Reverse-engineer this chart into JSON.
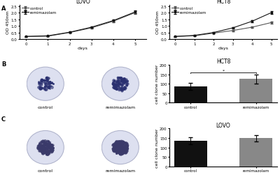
{
  "lovo_days": [
    0,
    1,
    2,
    3,
    4,
    5
  ],
  "lovo_control": [
    0.2,
    0.22,
    0.5,
    0.85,
    1.35,
    2.0
  ],
  "lovo_remi": [
    0.2,
    0.25,
    0.52,
    0.9,
    1.4,
    2.05
  ],
  "lovo_control_err": [
    0.02,
    0.02,
    0.04,
    0.06,
    0.08,
    0.1
  ],
  "lovo_remi_err": [
    0.02,
    0.02,
    0.05,
    0.07,
    0.09,
    0.12
  ],
  "hct8_days": [
    0,
    1,
    2,
    3,
    4,
    5
  ],
  "hct8_control": [
    0.2,
    0.25,
    0.45,
    0.65,
    0.9,
    1.25
  ],
  "hct8_remi": [
    0.2,
    0.28,
    0.5,
    0.85,
    1.35,
    2.0
  ],
  "hct8_control_err": [
    0.02,
    0.02,
    0.04,
    0.05,
    0.07,
    0.08
  ],
  "hct8_remi_err": [
    0.02,
    0.02,
    0.04,
    0.06,
    0.09,
    0.12
  ],
  "hct8_bar_control": 85,
  "hct8_bar_remi": 125,
  "hct8_bar_control_err": 18,
  "hct8_bar_remi_err": 25,
  "lovo_bar_control": 135,
  "lovo_bar_remi": 148,
  "lovo_bar_control_err": 20,
  "lovo_bar_remi_err": 18,
  "line_color_control": "#555555",
  "line_color_remi": "#111111",
  "bar_color_control": "#111111",
  "bar_color_remi": "#888888",
  "background_color": "#ffffff",
  "panel_label_size": 6,
  "axis_label_size": 4.5,
  "tick_label_size": 4,
  "title_size": 5.5,
  "legend_size": 4,
  "petri_bg": "#e8eaf5",
  "petri_fill": "#dde0f0",
  "petri_border": "#b0b4cc",
  "colony_color_b": "#2a3070",
  "colony_color_c": "#3a3a6a"
}
